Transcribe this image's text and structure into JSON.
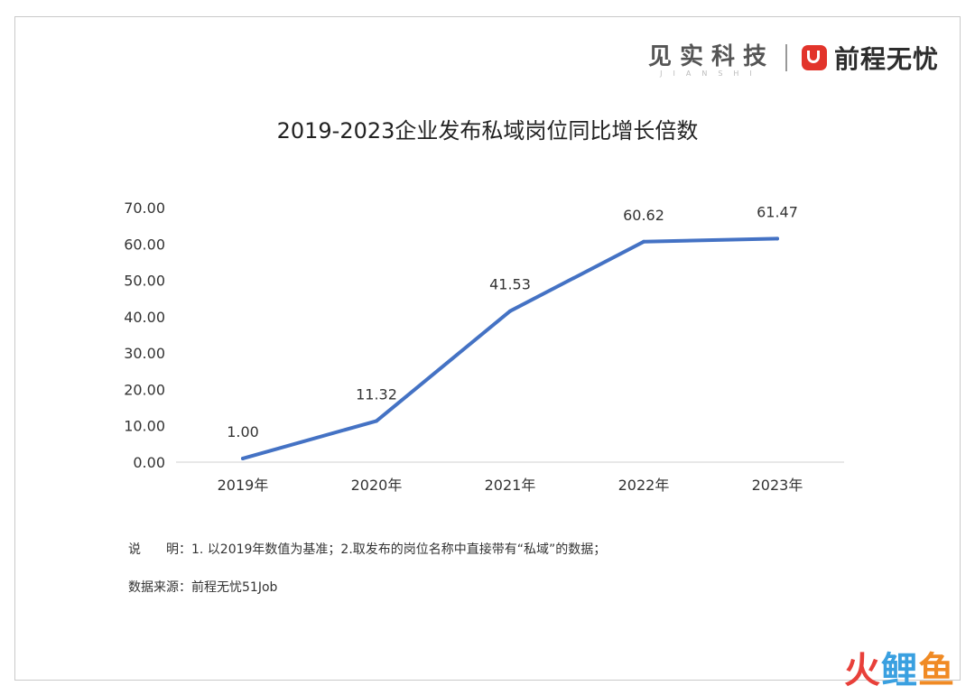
{
  "brand": {
    "jianshi": "见实科技",
    "jianshi_sub": "JIANSHI",
    "qcwy": "前程无忧"
  },
  "chart_data": {
    "type": "line",
    "title": "2019-2023企业发布私域岗位同比增长倍数",
    "categories": [
      "2019年",
      "2020年",
      "2021年",
      "2022年",
      "2023年"
    ],
    "values": [
      1.0,
      11.32,
      41.53,
      60.62,
      61.47
    ],
    "value_labels": [
      "1.00",
      "11.32",
      "41.53",
      "60.62",
      "61.47"
    ],
    "ylim": [
      0,
      70
    ],
    "yticks": [
      "0.00",
      "10.00",
      "20.00",
      "30.00",
      "40.00",
      "50.00",
      "60.00",
      "70.00"
    ],
    "grid": false,
    "line_color": "#4472c4"
  },
  "notes": {
    "explain_label": "说　　明：",
    "explain_text": "1. 以2019年数值为基准；2.取发布的岗位名称中直接带有“私域”的数据；",
    "source_label": "数据来源：",
    "source_text": "前程无忧51Job"
  },
  "watermark": {
    "a": "火",
    "b": "鲤",
    "c": "鱼"
  }
}
